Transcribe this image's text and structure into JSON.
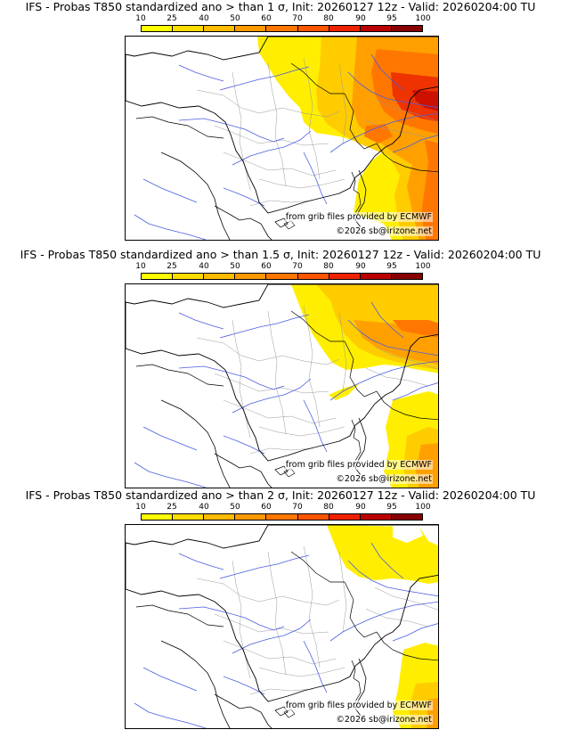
{
  "colorbar": {
    "ticks": [
      "10",
      "25",
      "40",
      "50",
      "60",
      "70",
      "80",
      "90",
      "95",
      "100"
    ],
    "colors": [
      "#ffff00",
      "#ffdd00",
      "#ffbb00",
      "#ff9900",
      "#ff7700",
      "#ff5500",
      "#ee2200",
      "#bb0000",
      "#880000"
    ]
  },
  "credits": {
    "source": "from grib files provided by ECMWF",
    "copyright": "©2026 sb@irizone.net"
  },
  "panels": [
    {
      "title": "IFS - Probas T850  standardized ano > than 1 σ, Init: 20260127 12z - Valid: 20260204:00 TU",
      "threshold_sigma": 1
    },
    {
      "title": "IFS - Probas T850  standardized ano > than 1.5 σ, Init: 20260127 12z - Valid: 20260204:00 TU",
      "threshold_sigma": 1.5
    },
    {
      "title": "IFS - Probas T850  standardized ano > than 2 σ, Init: 20260127 12z - Valid: 20260204:00 TU",
      "threshold_sigma": 2
    }
  ]
}
